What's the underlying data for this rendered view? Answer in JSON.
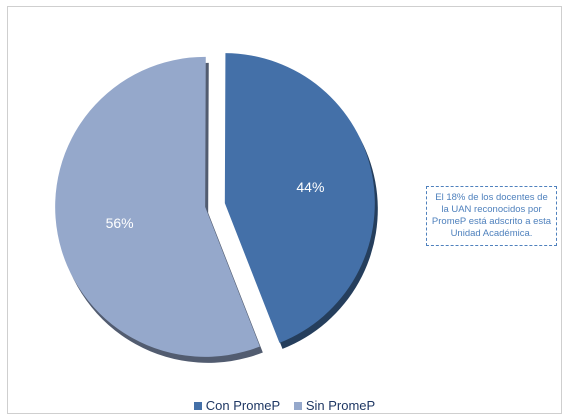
{
  "chart_data": {
    "type": "pie",
    "categories": [
      "Con PromeP",
      "Sin PromeP"
    ],
    "values": [
      44,
      56
    ],
    "data_labels": [
      "44%",
      "56%"
    ],
    "colors": [
      "#4470a8",
      "#95a8cb"
    ],
    "exploded": true,
    "style": "3d",
    "legend_position": "bottom"
  },
  "annotation": {
    "text": "El 18% de los docentes de la UAN reconocidos por PromeP está adscrito a esta Unidad Académica."
  }
}
